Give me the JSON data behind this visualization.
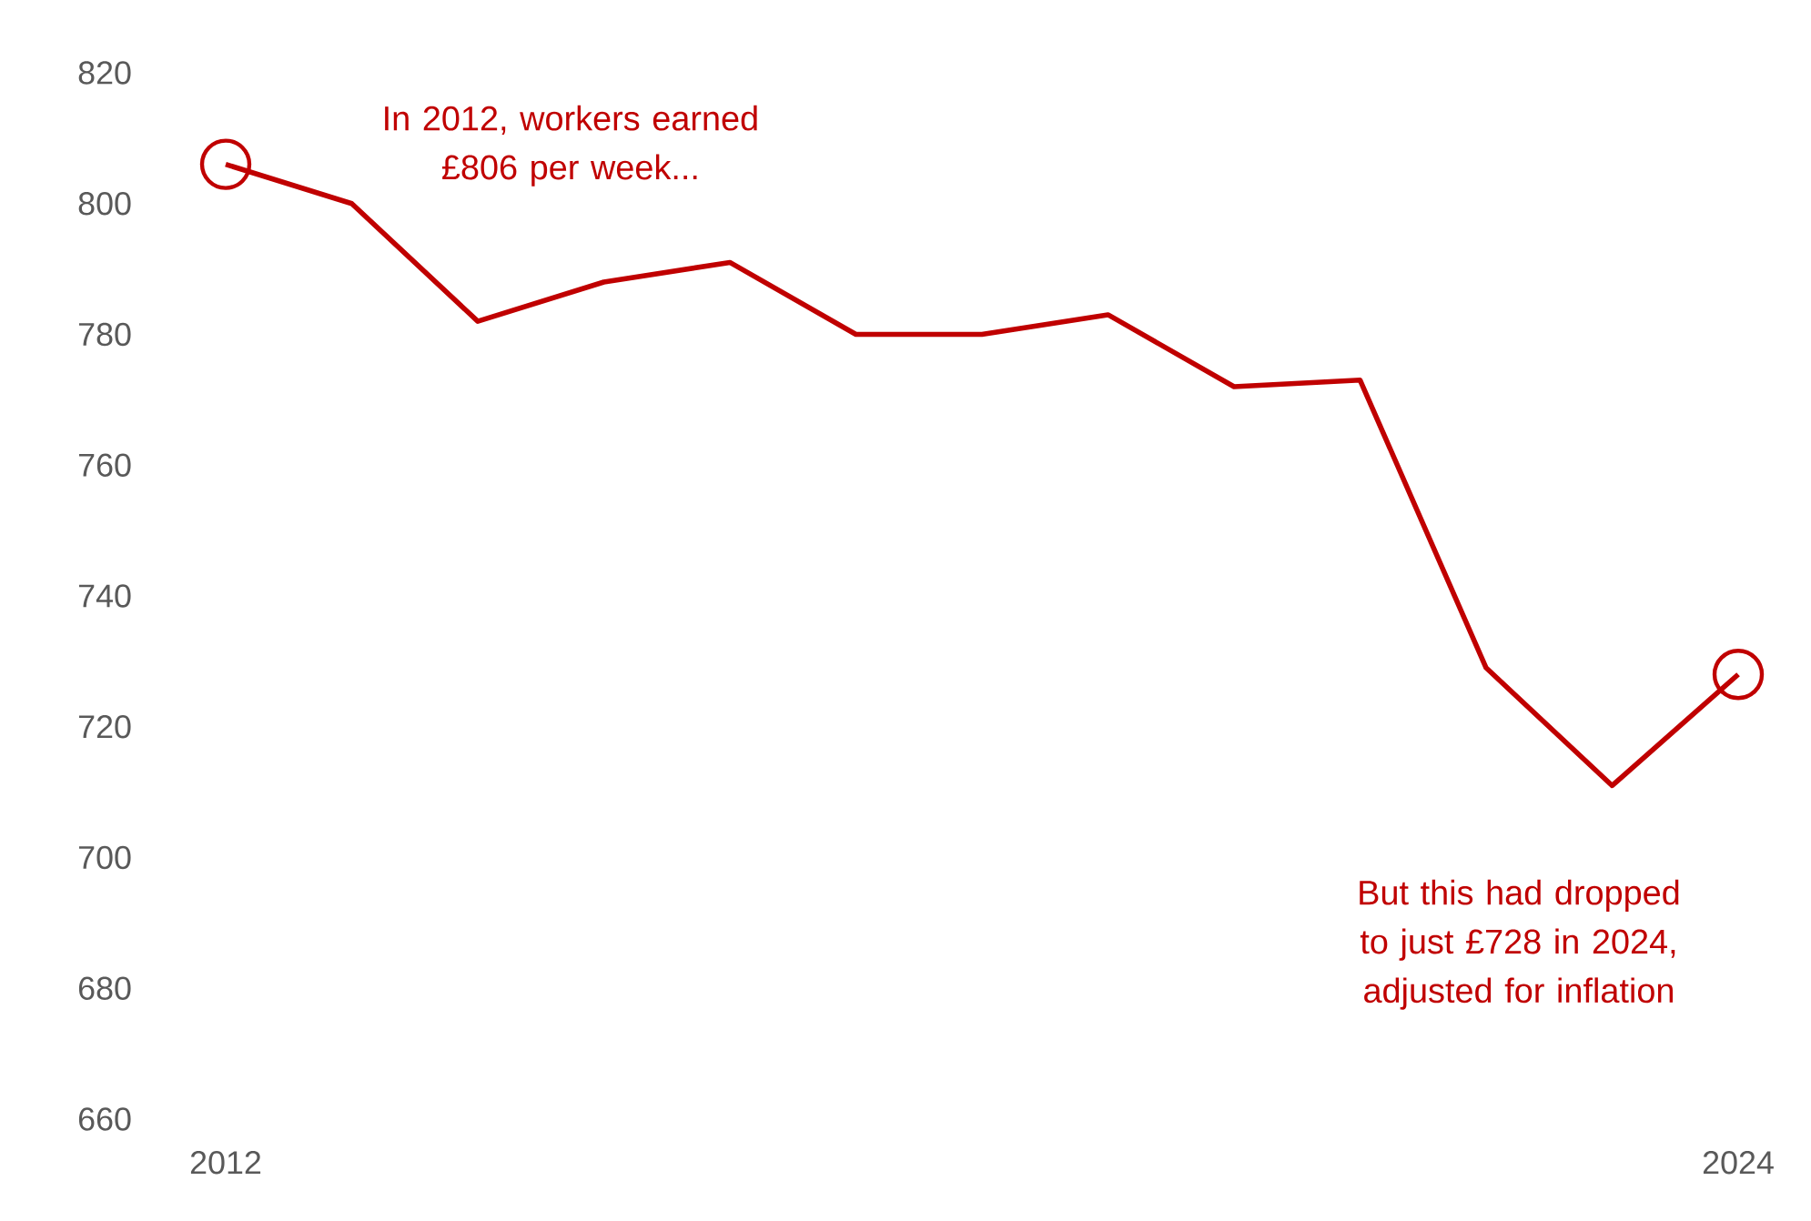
{
  "chart_data": {
    "type": "line",
    "x": [
      2012,
      2013,
      2014,
      2015,
      2016,
      2017,
      2018,
      2019,
      2020,
      2021,
      2022,
      2023,
      2024
    ],
    "series": [
      {
        "color": "#c00000",
        "values": [
          806,
          800,
          782,
          788,
          791,
          780,
          780,
          783,
          772,
          773,
          729,
          711,
          728
        ]
      },
      {
        "type": "scatter",
        "marker": "circle",
        "color": "#c00000",
        "x": [
          2012,
          2024
        ],
        "values": [
          806,
          728
        ]
      }
    ],
    "xlim": [
      2012,
      2024
    ],
    "xticks": [
      2012,
      2024
    ],
    "ylim": [
      660,
      820
    ],
    "yticks": [
      660,
      680,
      700,
      720,
      740,
      760,
      780,
      800,
      820
    ],
    "grid": false,
    "marker": "none",
    "line_style": "solid",
    "annotations": [
      "In 2012, workers earned £806 per week...",
      "But this had dropped to just £728 in 2024, adjusted for inflation"
    ]
  }
}
